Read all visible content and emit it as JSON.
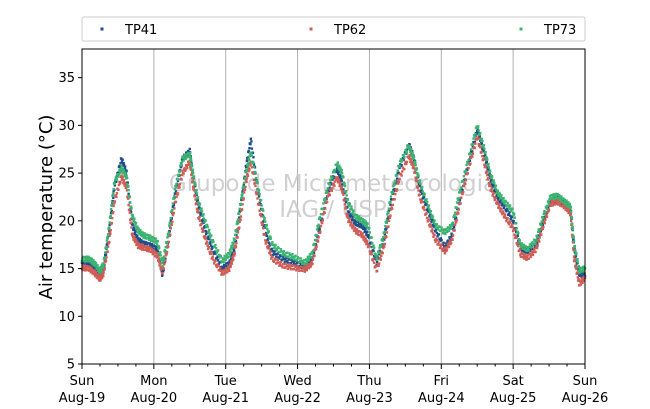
{
  "chart_data": {
    "type": "scatter",
    "ylabel": "Air temperature (°C)",
    "xlabel": "",
    "ylim": [
      5,
      38
    ],
    "xlim": [
      0,
      7
    ],
    "yticks": [
      5,
      10,
      15,
      20,
      25,
      30,
      35
    ],
    "xticks": [
      {
        "day": "Sun",
        "date": "Aug-19"
      },
      {
        "day": "Mon",
        "date": "Aug-20"
      },
      {
        "day": "Tue",
        "date": "Aug-21"
      },
      {
        "day": "Wed",
        "date": "Aug-22"
      },
      {
        "day": "Thu",
        "date": "Aug-23"
      },
      {
        "day": "Fri",
        "date": "Aug-24"
      },
      {
        "day": "Sat",
        "date": "Aug-25"
      },
      {
        "day": "Sun",
        "date": "Aug-26"
      }
    ],
    "grid": "vertical at day boundaries",
    "legend_position": "top",
    "watermark": [
      "Grupo de Micrometeorologia",
      "IAG / USP"
    ],
    "series": [
      {
        "name": "TP41",
        "color": "#1f4e8c",
        "points": [
          [
            0,
            15.6
          ],
          [
            0.1,
            15.6
          ],
          [
            0.18,
            15.0
          ],
          [
            0.25,
            14.4
          ],
          [
            0.3,
            15.0
          ],
          [
            0.38,
            19.0
          ],
          [
            0.45,
            23.5
          ],
          [
            0.55,
            26.5
          ],
          [
            0.62,
            25.0
          ],
          [
            0.7,
            19.5
          ],
          [
            0.78,
            18.0
          ],
          [
            0.85,
            17.6
          ],
          [
            0.95,
            17.4
          ],
          [
            1.05,
            17.0
          ],
          [
            1.12,
            14.3
          ],
          [
            1.2,
            18.0
          ],
          [
            1.3,
            23.0
          ],
          [
            1.4,
            26.5
          ],
          [
            1.5,
            27.3
          ],
          [
            1.55,
            24.5
          ],
          [
            1.62,
            21.5
          ],
          [
            1.72,
            19.0
          ],
          [
            1.82,
            17.0
          ],
          [
            1.95,
            15.0
          ],
          [
            2.05,
            15.5
          ],
          [
            2.12,
            17.0
          ],
          [
            2.2,
            21.0
          ],
          [
            2.28,
            25.5
          ],
          [
            2.35,
            28.5
          ],
          [
            2.45,
            23.0
          ],
          [
            2.55,
            18.8
          ],
          [
            2.65,
            16.7
          ],
          [
            2.8,
            16.0
          ],
          [
            2.95,
            15.6
          ],
          [
            3.1,
            15.2
          ],
          [
            3.2,
            16.0
          ],
          [
            3.3,
            19.0
          ],
          [
            3.42,
            23.0
          ],
          [
            3.55,
            25.5
          ],
          [
            3.62,
            24.0
          ],
          [
            3.7,
            21.0
          ],
          [
            3.8,
            19.8
          ],
          [
            3.9,
            19.5
          ],
          [
            3.98,
            18.5
          ],
          [
            4.1,
            15.6
          ],
          [
            4.2,
            18.0
          ],
          [
            4.3,
            22.0
          ],
          [
            4.42,
            25.5
          ],
          [
            4.55,
            28.0
          ],
          [
            4.62,
            26.5
          ],
          [
            4.7,
            23.5
          ],
          [
            4.82,
            21.0
          ],
          [
            4.92,
            19.0
          ],
          [
            5.05,
            17.2
          ],
          [
            5.15,
            18.5
          ],
          [
            5.25,
            22.0
          ],
          [
            5.38,
            26.0
          ],
          [
            5.5,
            29.5
          ],
          [
            5.6,
            27.0
          ],
          [
            5.68,
            24.5
          ],
          [
            5.78,
            22.5
          ],
          [
            5.88,
            21.5
          ],
          [
            6.0,
            20.0
          ],
          [
            6.1,
            17.2
          ],
          [
            6.2,
            16.8
          ],
          [
            6.32,
            17.5
          ],
          [
            6.42,
            20.0
          ],
          [
            6.52,
            22.0
          ],
          [
            6.62,
            22.3
          ],
          [
            6.72,
            21.8
          ],
          [
            6.8,
            21.2
          ],
          [
            6.85,
            17.0
          ],
          [
            6.92,
            14.5
          ],
          [
            7.0,
            14.2
          ]
        ]
      },
      {
        "name": "TP62",
        "color": "#d05d56",
        "points": [
          [
            0,
            15.1
          ],
          [
            0.1,
            15.0
          ],
          [
            0.18,
            14.5
          ],
          [
            0.25,
            13.9
          ],
          [
            0.3,
            14.5
          ],
          [
            0.38,
            18.0
          ],
          [
            0.45,
            22.0
          ],
          [
            0.55,
            24.6
          ],
          [
            0.62,
            23.5
          ],
          [
            0.7,
            18.5
          ],
          [
            0.78,
            17.4
          ],
          [
            0.85,
            17.2
          ],
          [
            0.95,
            17.0
          ],
          [
            1.05,
            16.3
          ],
          [
            1.12,
            14.6
          ],
          [
            1.2,
            17.5
          ],
          [
            1.3,
            22.0
          ],
          [
            1.4,
            25.0
          ],
          [
            1.5,
            26.2
          ],
          [
            1.55,
            23.5
          ],
          [
            1.62,
            20.5
          ],
          [
            1.72,
            18.0
          ],
          [
            1.82,
            16.0
          ],
          [
            1.95,
            14.5
          ],
          [
            2.05,
            15.0
          ],
          [
            2.12,
            16.5
          ],
          [
            2.2,
            20.0
          ],
          [
            2.28,
            24.0
          ],
          [
            2.35,
            26.2
          ],
          [
            2.45,
            22.0
          ],
          [
            2.55,
            18.0
          ],
          [
            2.65,
            16.0
          ],
          [
            2.8,
            15.3
          ],
          [
            2.95,
            15.1
          ],
          [
            3.1,
            14.9
          ],
          [
            3.2,
            15.5
          ],
          [
            3.3,
            18.5
          ],
          [
            3.42,
            22.5
          ],
          [
            3.55,
            24.5
          ],
          [
            3.62,
            23.3
          ],
          [
            3.7,
            20.2
          ],
          [
            3.8,
            19.0
          ],
          [
            3.9,
            18.5
          ],
          [
            3.98,
            17.5
          ],
          [
            4.1,
            14.8
          ],
          [
            4.2,
            17.2
          ],
          [
            4.3,
            21.0
          ],
          [
            4.42,
            24.5
          ],
          [
            4.55,
            26.8
          ],
          [
            4.62,
            25.5
          ],
          [
            4.7,
            22.5
          ],
          [
            4.82,
            20.0
          ],
          [
            4.92,
            18.0
          ],
          [
            5.05,
            16.8
          ],
          [
            5.15,
            18.0
          ],
          [
            5.25,
            21.5
          ],
          [
            5.38,
            25.5
          ],
          [
            5.5,
            28.8
          ],
          [
            5.6,
            26.0
          ],
          [
            5.68,
            23.5
          ],
          [
            5.78,
            21.8
          ],
          [
            5.88,
            20.5
          ],
          [
            6.0,
            19.2
          ],
          [
            6.1,
            16.5
          ],
          [
            6.2,
            16.1
          ],
          [
            6.32,
            17.0
          ],
          [
            6.42,
            19.5
          ],
          [
            6.52,
            21.8
          ],
          [
            6.62,
            22.0
          ],
          [
            6.72,
            21.5
          ],
          [
            6.8,
            20.8
          ],
          [
            6.85,
            16.0
          ],
          [
            6.92,
            13.4
          ],
          [
            7.0,
            14.0
          ]
        ]
      },
      {
        "name": "TP73",
        "color": "#3cb371",
        "points": [
          [
            0,
            16.0
          ],
          [
            0.1,
            16.0
          ],
          [
            0.18,
            15.5
          ],
          [
            0.25,
            14.7
          ],
          [
            0.3,
            15.5
          ],
          [
            0.38,
            19.5
          ],
          [
            0.45,
            24.0
          ],
          [
            0.55,
            25.5
          ],
          [
            0.62,
            24.6
          ],
          [
            0.7,
            20.5
          ],
          [
            0.78,
            19.0
          ],
          [
            0.85,
            18.5
          ],
          [
            0.95,
            18.2
          ],
          [
            1.05,
            17.8
          ],
          [
            1.12,
            15.5
          ],
          [
            1.2,
            18.6
          ],
          [
            1.3,
            23.5
          ],
          [
            1.4,
            26.5
          ],
          [
            1.5,
            27.0
          ],
          [
            1.55,
            24.8
          ],
          [
            1.62,
            22.0
          ],
          [
            1.72,
            19.8
          ],
          [
            1.82,
            17.8
          ],
          [
            1.95,
            15.8
          ],
          [
            2.05,
            16.5
          ],
          [
            2.12,
            18.0
          ],
          [
            2.2,
            21.5
          ],
          [
            2.28,
            25.0
          ],
          [
            2.35,
            27.2
          ],
          [
            2.45,
            23.5
          ],
          [
            2.55,
            19.8
          ],
          [
            2.65,
            17.5
          ],
          [
            2.8,
            16.6
          ],
          [
            2.95,
            16.2
          ],
          [
            3.1,
            15.6
          ],
          [
            3.2,
            16.5
          ],
          [
            3.3,
            20.0
          ],
          [
            3.42,
            23.5
          ],
          [
            3.55,
            26.0
          ],
          [
            3.62,
            25.0
          ],
          [
            3.7,
            22.0
          ],
          [
            3.8,
            20.5
          ],
          [
            3.9,
            20.0
          ],
          [
            3.98,
            19.5
          ],
          [
            4.1,
            16.0
          ],
          [
            4.2,
            18.5
          ],
          [
            4.3,
            22.5
          ],
          [
            4.42,
            26.0
          ],
          [
            4.55,
            27.8
          ],
          [
            4.62,
            26.5
          ],
          [
            4.7,
            24.0
          ],
          [
            4.82,
            21.5
          ],
          [
            4.92,
            19.5
          ],
          [
            5.05,
            18.8
          ],
          [
            5.15,
            19.5
          ],
          [
            5.25,
            22.8
          ],
          [
            5.38,
            26.5
          ],
          [
            5.5,
            30.0
          ],
          [
            5.6,
            27.5
          ],
          [
            5.68,
            25.0
          ],
          [
            5.78,
            23.0
          ],
          [
            5.88,
            22.0
          ],
          [
            6.0,
            21.0
          ],
          [
            6.1,
            17.5
          ],
          [
            6.2,
            17.0
          ],
          [
            6.32,
            18.0
          ],
          [
            6.42,
            20.5
          ],
          [
            6.52,
            22.5
          ],
          [
            6.62,
            22.6
          ],
          [
            6.72,
            22.0
          ],
          [
            6.8,
            21.5
          ],
          [
            6.85,
            17.5
          ],
          [
            6.92,
            14.8
          ],
          [
            7.0,
            15.0
          ]
        ]
      }
    ]
  }
}
